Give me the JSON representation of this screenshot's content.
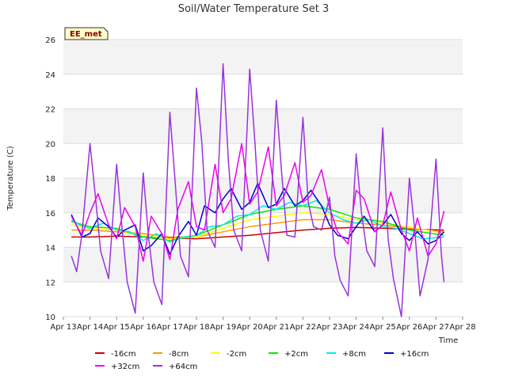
{
  "chart_data": {
    "type": "line",
    "title": "Soil/Water Temperature Set 3",
    "xlabel": "Time",
    "ylabel": "Temperature (C)",
    "badge": "EE_met",
    "ylim": [
      10,
      26
    ],
    "yticks": [
      10,
      12,
      14,
      16,
      18,
      20,
      22,
      24,
      26
    ],
    "xlim": [
      13,
      28
    ],
    "xticks": [
      {
        "v": 13,
        "label": "Apr 13"
      },
      {
        "v": 14,
        "label": "Apr 14"
      },
      {
        "v": 15,
        "label": "Apr 15"
      },
      {
        "v": 16,
        "label": "Apr 16"
      },
      {
        "v": 17,
        "label": "Apr 17"
      },
      {
        "v": 18,
        "label": "Apr 18"
      },
      {
        "v": 19,
        "label": "Apr 19"
      },
      {
        "v": 20,
        "label": "Apr 20"
      },
      {
        "v": 21,
        "label": "Apr 21"
      },
      {
        "v": 22,
        "label": "Apr 22"
      },
      {
        "v": 23,
        "label": "Apr 23"
      },
      {
        "v": 24,
        "label": "Apr 24"
      },
      {
        "v": 25,
        "label": "Apr 25"
      },
      {
        "v": 26,
        "label": "Apr 26"
      },
      {
        "v": 27,
        "label": "Apr 27"
      },
      {
        "v": 28,
        "label": "Apr 28"
      }
    ],
    "grid": true,
    "legend_position": "bottom",
    "series": [
      {
        "name": "-16cm",
        "color": "#cc0000",
        "x": [
          13.3,
          14,
          15,
          16,
          17,
          18,
          19,
          20,
          21,
          22,
          23,
          24,
          25,
          26,
          27.3
        ],
        "y": [
          14.6,
          14.6,
          14.65,
          14.6,
          14.55,
          14.5,
          14.6,
          14.7,
          14.85,
          15.0,
          15.1,
          15.15,
          15.1,
          15.05,
          15.0
        ]
      },
      {
        "name": "-8cm",
        "color": "#ff9900",
        "x": [
          13.3,
          14,
          15,
          16,
          17,
          18,
          19,
          20,
          21,
          22,
          23,
          24,
          25,
          26,
          27.3
        ],
        "y": [
          15.0,
          15.0,
          14.9,
          14.8,
          14.6,
          14.6,
          14.9,
          15.2,
          15.4,
          15.6,
          15.6,
          15.4,
          15.3,
          15.1,
          14.9
        ]
      },
      {
        "name": "-2cm",
        "color": "#ffff00",
        "x": [
          13.3,
          14,
          15,
          16,
          17,
          18,
          19,
          20,
          21,
          22,
          23,
          24,
          25,
          26,
          27.3
        ],
        "y": [
          15.3,
          15.1,
          15.0,
          14.7,
          14.5,
          14.6,
          15.1,
          15.6,
          15.8,
          16.0,
          15.9,
          15.6,
          15.4,
          15.2,
          14.8
        ]
      },
      {
        "name": "+2cm",
        "color": "#00ee00",
        "x": [
          13.3,
          14,
          15,
          16,
          17,
          18,
          19,
          20,
          21,
          22,
          23,
          24,
          25,
          26,
          27.3
        ],
        "y": [
          15.5,
          15.2,
          15.1,
          14.6,
          14.4,
          14.7,
          15.3,
          15.9,
          16.2,
          16.4,
          16.2,
          15.7,
          15.5,
          15.0,
          14.7
        ]
      },
      {
        "name": "+8cm",
        "color": "#00eeee",
        "x": [
          13.3,
          13.6,
          14,
          14.5,
          15,
          15.5,
          16,
          16.5,
          17,
          17.5,
          18,
          18.5,
          19,
          19.5,
          20,
          20.5,
          21,
          21.5,
          22,
          22.5,
          23,
          23.5,
          24,
          24.5,
          25,
          25.5,
          26,
          26.5,
          27.3
        ],
        "y": [
          15.6,
          15.3,
          15.1,
          15.4,
          15.0,
          14.9,
          14.4,
          14.8,
          14.3,
          14.6,
          14.7,
          15.2,
          15.3,
          15.8,
          15.9,
          16.4,
          16.2,
          16.6,
          16.4,
          16.7,
          16.0,
          15.6,
          15.4,
          15.6,
          15.2,
          15.1,
          14.8,
          14.5,
          14.6
        ]
      },
      {
        "name": "+16cm",
        "color": "#0000cc",
        "x": [
          13.3,
          13.7,
          14,
          14.3,
          14.7,
          15,
          15.3,
          15.7,
          16,
          16.3,
          16.7,
          17,
          17.3,
          17.7,
          18,
          18.3,
          18.7,
          19,
          19.3,
          19.7,
          20,
          20.3,
          20.7,
          21,
          21.3,
          21.7,
          22,
          22.3,
          22.7,
          23,
          23.3,
          23.7,
          24,
          24.3,
          24.7,
          25,
          25.3,
          25.7,
          26,
          26.3,
          26.7,
          27,
          27.3
        ],
        "y": [
          15.9,
          14.6,
          14.8,
          15.7,
          15.2,
          14.6,
          15.0,
          15.3,
          13.8,
          14.1,
          14.8,
          13.6,
          14.6,
          15.5,
          14.7,
          16.4,
          16.0,
          16.8,
          17.4,
          16.2,
          16.6,
          17.7,
          16.3,
          16.5,
          17.4,
          16.4,
          16.7,
          17.3,
          16.4,
          15.3,
          14.7,
          14.5,
          15.2,
          15.8,
          14.9,
          15.3,
          15.9,
          14.8,
          14.4,
          14.9,
          14.2,
          14.4,
          14.9
        ]
      },
      {
        "name": "+32cm",
        "color": "#ee00ee",
        "x": [
          13.3,
          13.7,
          14,
          14.3,
          14.7,
          15,
          15.3,
          15.7,
          16,
          16.3,
          16.7,
          17,
          17.3,
          17.7,
          18,
          18.3,
          18.7,
          19,
          19.3,
          19.7,
          20,
          20.3,
          20.7,
          21,
          21.3,
          21.7,
          22,
          22.3,
          22.7,
          23,
          23.3,
          23.7,
          24,
          24.3,
          24.7,
          25,
          25.3,
          25.7,
          26,
          26.3,
          26.7,
          27,
          27.3
        ],
        "y": [
          15.8,
          14.7,
          16.0,
          17.1,
          15.3,
          14.5,
          16.3,
          15.2,
          13.2,
          15.8,
          14.8,
          13.3,
          16.2,
          17.8,
          15.2,
          15.0,
          18.8,
          16.0,
          16.8,
          20.0,
          16.5,
          17.2,
          19.8,
          16.4,
          17.0,
          18.9,
          16.6,
          17.0,
          18.5,
          16.3,
          14.9,
          14.2,
          17.3,
          16.8,
          14.9,
          15.3,
          17.2,
          15.0,
          13.8,
          15.7,
          13.5,
          14.2,
          16.1
        ]
      },
      {
        "name": "+64cm",
        "color": "#9933dd",
        "x": [
          13.3,
          13.5,
          13.7,
          14,
          14.2,
          14.4,
          14.7,
          15,
          15.2,
          15.4,
          15.7,
          16,
          16.2,
          16.4,
          16.7,
          17,
          17.2,
          17.4,
          17.7,
          18,
          18.2,
          18.4,
          18.7,
          19,
          19.2,
          19.4,
          19.7,
          20,
          20.2,
          20.4,
          20.7,
          21,
          21.2,
          21.4,
          21.7,
          22,
          22.2,
          22.4,
          22.7,
          23,
          23.2,
          23.4,
          23.7,
          24,
          24.2,
          24.4,
          24.7,
          25,
          25.2,
          25.4,
          25.7,
          26,
          26.2,
          26.4,
          26.7,
          27,
          27.2,
          27.3
        ],
        "y": [
          13.5,
          12.6,
          14.8,
          20.0,
          17.0,
          13.8,
          12.2,
          18.8,
          15.2,
          12.0,
          10.2,
          18.3,
          14.6,
          12.0,
          10.7,
          21.8,
          17.8,
          13.5,
          12.3,
          23.2,
          20.1,
          15.0,
          14.0,
          24.6,
          19.0,
          15.0,
          13.8,
          24.3,
          20.0,
          15.0,
          13.2,
          22.5,
          18.3,
          14.7,
          14.6,
          21.5,
          16.6,
          15.2,
          15.0,
          16.9,
          13.5,
          12.1,
          11.2,
          19.4,
          16.0,
          13.8,
          12.9,
          20.9,
          14.5,
          12.2,
          10.0,
          18.0,
          15.0,
          11.2,
          13.3,
          19.1,
          13.6,
          12.0
        ]
      }
    ]
  }
}
